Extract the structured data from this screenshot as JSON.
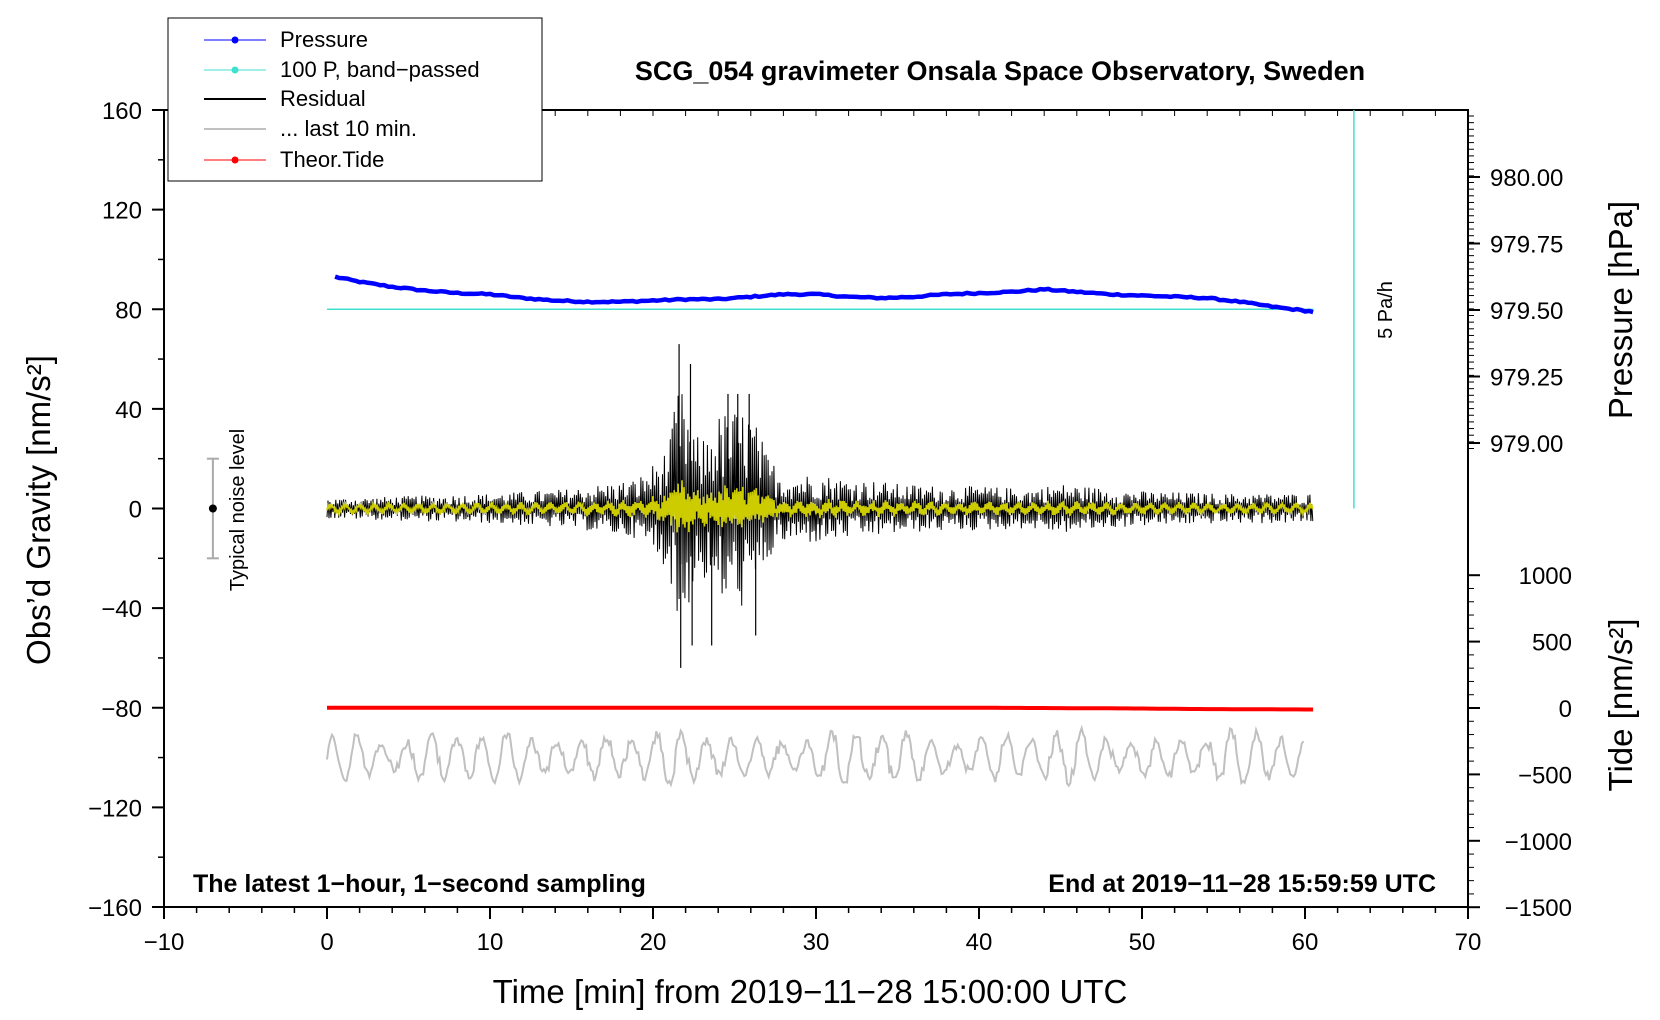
{
  "chart_data": {
    "type": "line",
    "title": "SCG_054 gravimeter Onsala Space Observatory, Sweden",
    "xlabel": "Time [min] from 2019−11−28 15:00:00 UTC",
    "ylabel_left": "Obs’d Gravity [nm/s²]",
    "ylabel_right_pressure": "Pressure [hPa]",
    "ylabel_right_tide": "Tide [nm/s²]",
    "xlim": [
      -10,
      70
    ],
    "ylim": [
      -160,
      160
    ],
    "x_ticks": [
      "−10",
      "0",
      "10",
      "20",
      "30",
      "40",
      "50",
      "60",
      "70"
    ],
    "y_ticks": [
      "160",
      "120",
      "80",
      "40",
      "0",
      "−40",
      "−80",
      "−120",
      "−160"
    ],
    "pressure_ticks": [
      "980.00",
      "979.75",
      "979.50",
      "979.25",
      "979.00"
    ],
    "tide_ticks": [
      "1000",
      "500",
      "0",
      "−500",
      "−1000",
      "−1500"
    ],
    "legend": {
      "pressure": "Pressure",
      "band_passed": "100 P, band−passed",
      "residual": "Residual",
      "last10": "... last 10 min.",
      "tide": "Theor.Tide"
    },
    "annotations": {
      "sampling": "The latest 1−hour, 1−second sampling",
      "end": "End at 2019−11−28 15:59:59 UTC",
      "noise": "Typical noise level",
      "rate": "5 Pa/h"
    },
    "colors": {
      "pressure": "#0000ff",
      "band_passed": "#40e0d0",
      "residual": "#000000",
      "last10": "#c0c0c0",
      "tide": "#ff0000",
      "yellow": "#cccc00"
    },
    "series": [
      {
        "name": "Pressure",
        "x": [
          0.5,
          2,
          4,
          6,
          8,
          10,
          12,
          14,
          16,
          18,
          20,
          22,
          24,
          26,
          28,
          30,
          32,
          34,
          36,
          38,
          40,
          42,
          44,
          46,
          48,
          50,
          52,
          54,
          56,
          58,
          60.5
        ],
        "values": [
          93,
          91,
          89,
          87.5,
          86.5,
          86,
          84.5,
          83.5,
          83,
          83,
          83.5,
          84,
          84,
          85,
          86,
          86,
          85,
          84.5,
          85,
          86,
          86.5,
          87,
          88,
          87,
          86,
          85.5,
          85,
          84.5,
          83,
          81,
          79
        ]
      },
      {
        "name": "100 P, band-passed",
        "x": [
          0,
          60.5
        ],
        "values": [
          80,
          80
        ]
      },
      {
        "name": "Theor.Tide",
        "x": [
          0,
          20,
          40,
          50,
          53,
          60.5
        ],
        "values": [
          -80,
          -80,
          -80,
          -80.3,
          -80.5,
          -80.7
        ]
      },
      {
        "name": "Residual",
        "x": [
          0,
          5,
          10,
          15,
          19,
          20,
          21,
          21.5,
          22,
          22.5,
          23,
          24,
          25,
          26,
          27,
          28,
          30,
          32,
          34,
          35,
          38,
          40,
          43,
          45,
          48,
          50,
          55,
          60
        ],
        "amplitude": [
          4,
          5,
          6,
          8,
          12,
          18,
          25,
          50,
          45,
          30,
          28,
          38,
          40,
          40,
          22,
          14,
          14,
          12,
          11,
          10,
          9,
          9,
          8,
          10,
          8,
          7,
          6,
          6
        ]
      },
      {
        "name": "... last 10 min.",
        "x_range": [
          0,
          60
        ],
        "baseline": -100,
        "amplitude": 7
      }
    ],
    "noise_level": {
      "x": -7,
      "center": 0,
      "range": [
        -20,
        20
      ]
    },
    "rate_marker": {
      "x": 63,
      "range": [
        0,
        160
      ]
    }
  }
}
